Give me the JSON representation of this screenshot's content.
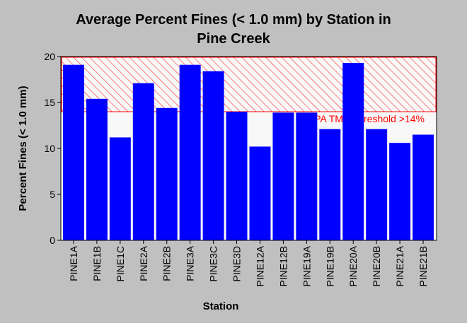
{
  "chart_data": {
    "type": "bar",
    "title_line1": "Average Percent Fines (< 1.0 mm) by Station in",
    "title_line2": "Pine Creek",
    "xlabel": "Station",
    "ylabel": "Percent Fines (< 1.0 mm)",
    "ylim": [
      0,
      20
    ],
    "yticks": [
      "0",
      "5",
      "10",
      "15",
      "20"
    ],
    "categories": [
      "PINE1A",
      "PINE1B",
      "PINE1C",
      "PINE2A",
      "PINE2B",
      "PINE3A",
      "PINE3C",
      "PINE3D",
      "PINE12A",
      "PINE12B",
      "PINE19A",
      "PINE19B",
      "PINE20A",
      "PINE20B",
      "PINE21A",
      "PINE21B"
    ],
    "values": [
      19.1,
      15.4,
      11.2,
      17.1,
      14.4,
      19.1,
      18.4,
      14.0,
      10.2,
      13.9,
      13.9,
      12.1,
      19.3,
      12.1,
      10.6,
      11.5
    ],
    "threshold": {
      "value": 14,
      "upper": 20,
      "label": "EPA TMDL Treshold >14%",
      "color": "#ff0000"
    },
    "bar_color": "#0000ff",
    "plot_background": "#f8f8f8",
    "grid": false
  }
}
